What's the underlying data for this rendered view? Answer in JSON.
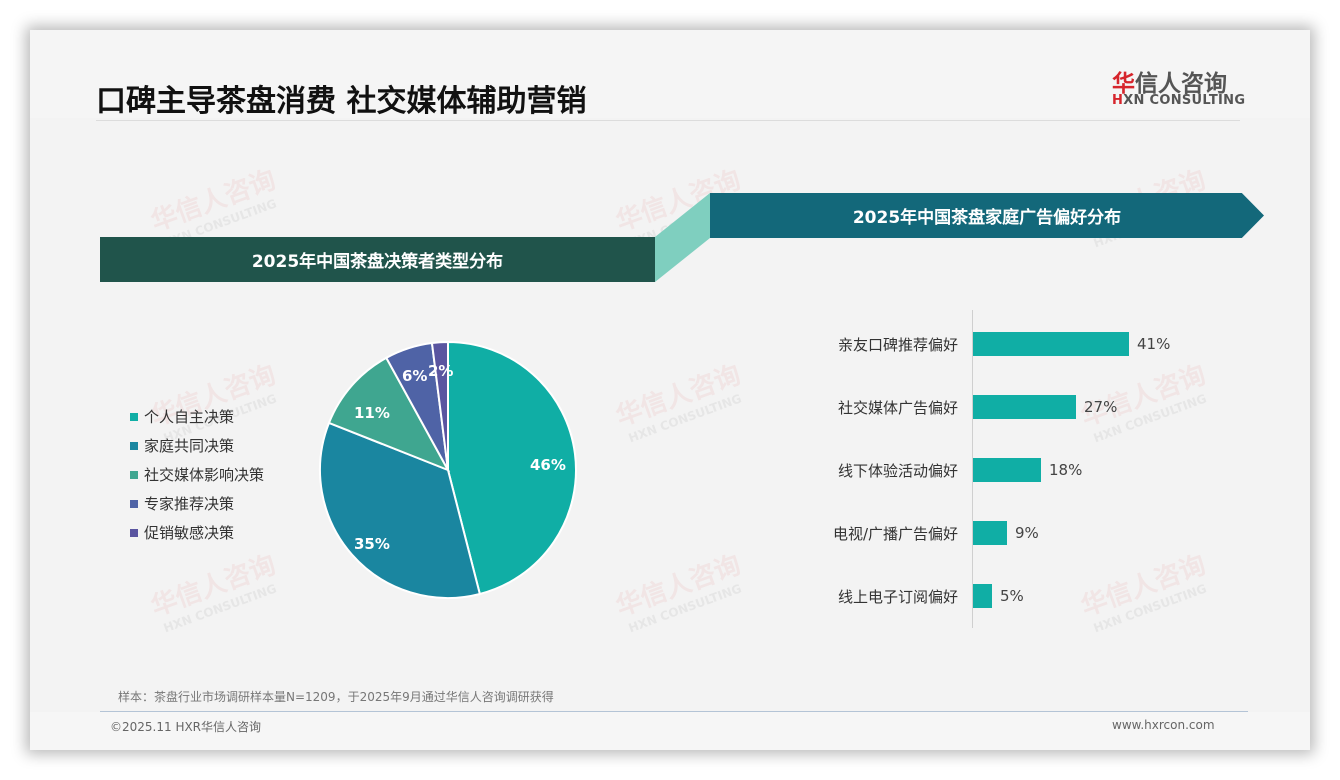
{
  "header": {
    "title": "口碑主导茶盘消费 社交媒体辅助营销",
    "logo_cn_red": "华",
    "logo_cn_rest": "信人咨询",
    "logo_en_red": "H",
    "logo_en_rest": "XN CONSULTING"
  },
  "watermark": {
    "cn": "华信人咨询",
    "en": "HXN CONSULTING"
  },
  "left_section": {
    "title": "2025年中国茶盘决策者类型分布"
  },
  "right_section": {
    "title": "2025年中国茶盘家庭广告偏好分布"
  },
  "colors": {
    "band_left": "#20544b",
    "band_right": "#13687a",
    "band_link": "#7fcfbf",
    "bar": "#10aea5",
    "pie": [
      "#10aea5",
      "#1a86a0",
      "#3fa690",
      "#4f63a6",
      "#5a55a0"
    ]
  },
  "chart_data": [
    {
      "type": "pie",
      "title": "2025年中国茶盘决策者类型分布",
      "categories": [
        "个人自主决策",
        "家庭共同决策",
        "社交媒体影响决策",
        "专家推荐决策",
        "促销敏感决策"
      ],
      "values": [
        46,
        35,
        11,
        6,
        2
      ],
      "labels": [
        "46%",
        "35%",
        "11%",
        "6%",
        "2%"
      ],
      "legend_position": "left"
    },
    {
      "type": "bar",
      "orientation": "horizontal",
      "title": "2025年中国茶盘家庭广告偏好分布",
      "categories": [
        "亲友口碑推荐偏好",
        "社交媒体广告偏好",
        "线下体验活动偏好",
        "电视/广播广告偏好",
        "线上电子订阅偏好"
      ],
      "values": [
        41,
        27,
        18,
        9,
        5
      ],
      "labels": [
        "41%",
        "27%",
        "18%",
        "9%",
        "5%"
      ],
      "unit": "%",
      "grid": false
    }
  ],
  "footer": {
    "note": "样本：茶盘行业市场调研样本量N=1209，于2025年9月通过华信人咨询调研获得",
    "copyright": "©2025.11 HXR华信人咨询",
    "website": "www.hxrcon.com"
  }
}
